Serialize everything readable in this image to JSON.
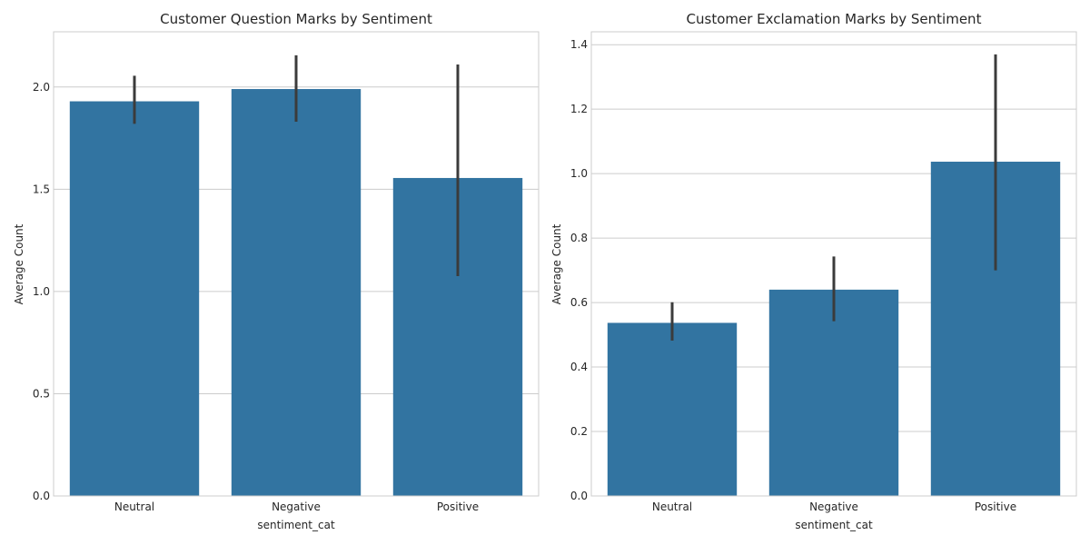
{
  "chart_data": [
    {
      "type": "bar",
      "title": "Customer Question Marks by Sentiment",
      "xlabel": "sentiment_cat",
      "ylabel": "Average Count",
      "categories": [
        "Neutral",
        "Negative",
        "Positive"
      ],
      "values": [
        1.93,
        1.99,
        1.555
      ],
      "error_bars": [
        [
          1.82,
          2.055
        ],
        [
          1.83,
          2.155
        ],
        [
          1.075,
          2.11
        ]
      ],
      "ylim": [
        0,
        2.27
      ],
      "yticks": [
        0.0,
        0.5,
        1.0,
        1.5,
        2.0
      ],
      "ytick_labels": [
        "0.0",
        "0.5",
        "1.0",
        "1.5",
        "2.0"
      ],
      "grid": "horizontal",
      "bar_color": "#3274a1",
      "errorbar_color": "#3b3b3b"
    },
    {
      "type": "bar",
      "title": "Customer Exclamation Marks by Sentiment",
      "xlabel": "sentiment_cat",
      "ylabel": "Average Count",
      "categories": [
        "Neutral",
        "Negative",
        "Positive"
      ],
      "values": [
        0.537,
        0.64,
        1.037
      ],
      "error_bars": [
        [
          0.482,
          0.601
        ],
        [
          0.542,
          0.743
        ],
        [
          0.7,
          1.37
        ]
      ],
      "ylim": [
        0,
        1.44
      ],
      "yticks": [
        0.0,
        0.2,
        0.4,
        0.6,
        0.8,
        1.0,
        1.2,
        1.4
      ],
      "ytick_labels": [
        "0.0",
        "0.2",
        "0.4",
        "0.6",
        "0.8",
        "1.0",
        "1.2",
        "1.4"
      ],
      "grid": "horizontal",
      "bar_color": "#3274a1",
      "errorbar_color": "#3b3b3b"
    }
  ]
}
